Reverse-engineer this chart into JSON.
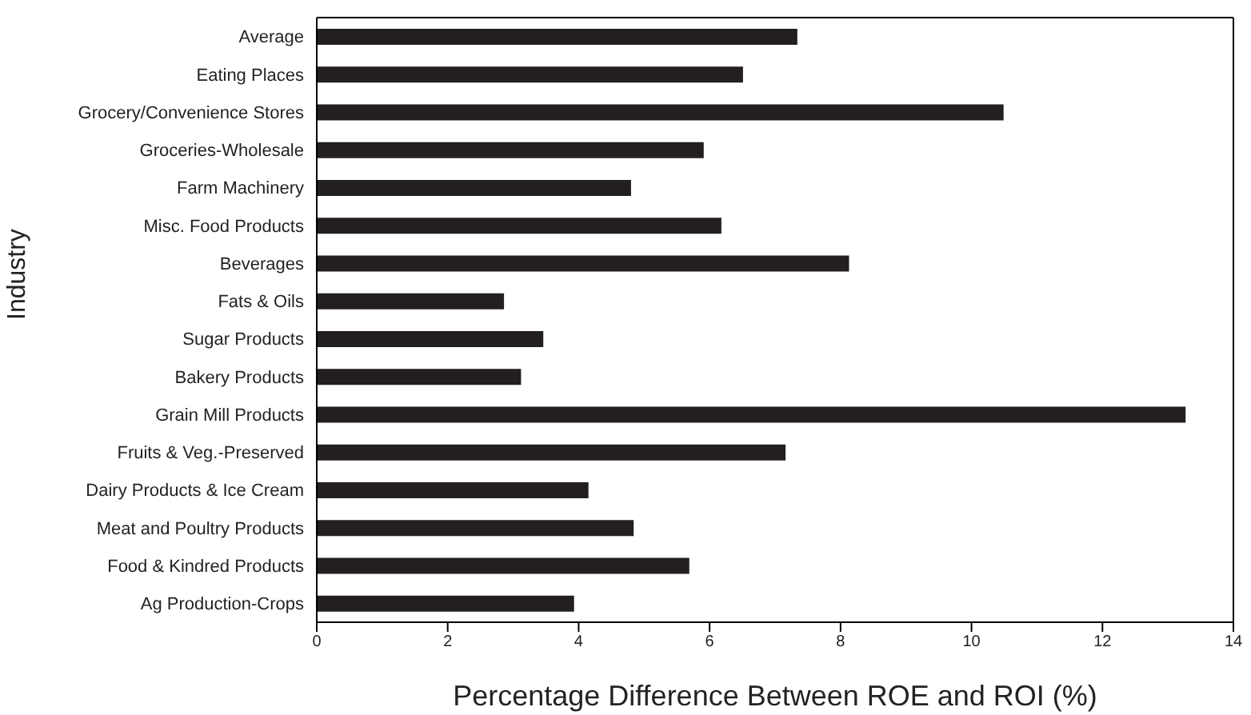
{
  "chart_data": {
    "type": "bar",
    "orientation": "horizontal",
    "xlabel": "Percentage Difference Between ROE and ROI (%)",
    "ylabel": "Industry",
    "categories": [
      "Average",
      "Eating Places",
      "Grocery/Convenience Stores",
      "Groceries-Wholesale",
      "Farm Machinery",
      "Misc. Food Products",
      "Beverages",
      "Fats & Oils",
      "Sugar Products",
      "Bakery Products",
      "Grain Mill Products",
      "Fruits & Veg.-Preserved",
      "Dairy Products & Ice Cream",
      "Meat and Poultry Products",
      "Food & Kindred Products",
      "Ag Production-Crops"
    ],
    "values": [
      7.34,
      6.51,
      10.49,
      5.91,
      4.8,
      6.18,
      8.13,
      2.86,
      3.46,
      3.12,
      13.27,
      7.16,
      4.15,
      4.84,
      5.69,
      3.93
    ],
    "color": "#231f20",
    "xlim": [
      0,
      14
    ],
    "xticks": [
      0,
      2,
      4,
      6,
      8,
      10,
      12,
      14
    ]
  }
}
